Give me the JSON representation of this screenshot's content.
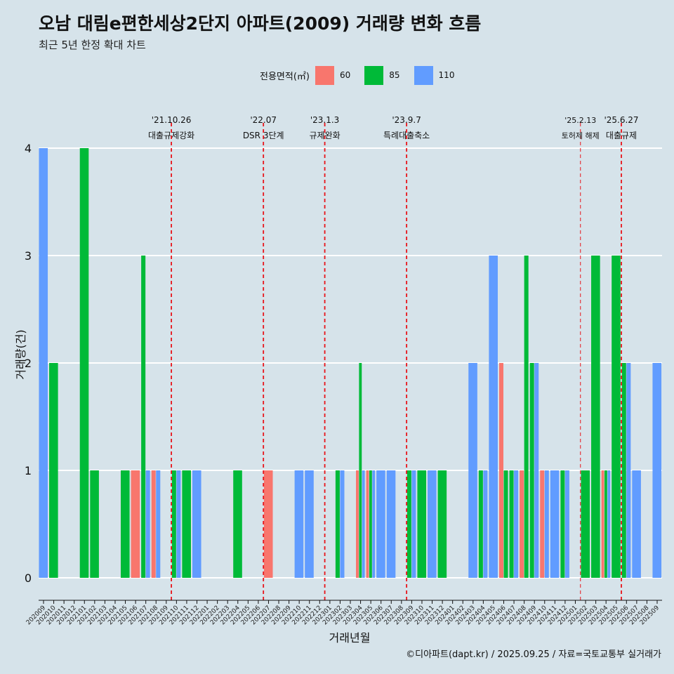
{
  "title": "오남 대림e편한세상2단지 아파트(2009) 거래량 변화 흐름",
  "subtitle": "최근 5년 한정 확대 차트",
  "caption": "©디아파트(dapt.kr) / 2025.09.25 / 자료=국토교통부 실거래가",
  "legend": {
    "title": "전용면적(㎡)",
    "items": [
      {
        "label": "60",
        "color": "#f8766d"
      },
      {
        "label": "85",
        "color": "#00ba38"
      },
      {
        "label": "110",
        "color": "#619cff"
      }
    ]
  },
  "chart_data": {
    "type": "bar",
    "title": "오남 대림e편한세상2단지 아파트(2009) 거래량 변화 흐름",
    "xlabel": "거래년월",
    "ylabel": "거래량(건)",
    "ylim": [
      0,
      4
    ],
    "yticks": [
      0,
      1,
      2,
      3,
      4
    ],
    "categories": [
      "202009",
      "202010",
      "202011",
      "202012",
      "202101",
      "202102",
      "202103",
      "202104",
      "202105",
      "202106",
      "202107",
      "202108",
      "202109",
      "202110",
      "202111",
      "202112",
      "202201",
      "202202",
      "202203",
      "202204",
      "202205",
      "202206",
      "202207",
      "202208",
      "202209",
      "202210",
      "202211",
      "202212",
      "202301",
      "202302",
      "202303",
      "202304",
      "202305",
      "202306",
      "202307",
      "202308",
      "202309",
      "202310",
      "202311",
      "202312",
      "202401",
      "202402",
      "202403",
      "202404",
      "202405",
      "202406",
      "202407",
      "202408",
      "202409",
      "202410",
      "202411",
      "202412",
      "202501",
      "202502",
      "202503",
      "202504",
      "202505",
      "202506",
      "202507",
      "202508",
      "202509"
    ],
    "series": [
      {
        "name": "60",
        "color": "#f8766d",
        "values": [
          0,
          0,
          0,
          0,
          0,
          0,
          0,
          0,
          0,
          1,
          0,
          1,
          0,
          0,
          0,
          0,
          0,
          0,
          0,
          0,
          0,
          0,
          1,
          0,
          0,
          0,
          0,
          0,
          0,
          0,
          0,
          1,
          1,
          0,
          0,
          0,
          0,
          0,
          0,
          0,
          0,
          0,
          0,
          0,
          0,
          2,
          0,
          1,
          0,
          1,
          0,
          0,
          0,
          0,
          0,
          1,
          0,
          0,
          0,
          0,
          0
        ]
      },
      {
        "name": "85",
        "color": "#00ba38",
        "values": [
          0,
          2,
          0,
          0,
          4,
          1,
          0,
          0,
          1,
          0,
          3,
          0,
          0,
          1,
          1,
          0,
          0,
          0,
          0,
          1,
          0,
          0,
          0,
          0,
          0,
          0,
          0,
          0,
          0,
          1,
          0,
          2,
          1,
          0,
          0,
          0,
          1,
          1,
          0,
          1,
          0,
          0,
          0,
          1,
          0,
          1,
          1,
          3,
          2,
          0,
          0,
          1,
          0,
          1,
          3,
          1,
          3,
          2,
          0,
          0,
          0
        ]
      },
      {
        "name": "110",
        "color": "#619cff",
        "values": [
          4,
          0,
          0,
          0,
          0,
          0,
          0,
          0,
          0,
          0,
          1,
          1,
          0,
          1,
          0,
          1,
          0,
          0,
          0,
          0,
          0,
          0,
          0,
          0,
          0,
          1,
          1,
          0,
          0,
          1,
          0,
          1,
          1,
          1,
          1,
          0,
          1,
          0,
          1,
          0,
          0,
          0,
          2,
          1,
          3,
          0,
          1,
          0,
          2,
          1,
          1,
          1,
          0,
          0,
          0,
          1,
          0,
          2,
          1,
          0,
          2
        ]
      }
    ],
    "events": [
      {
        "date": "'21.10.26",
        "label": "대출규제강화",
        "month_index": 13
      },
      {
        "date": "'22.07",
        "label": "DSR 3단계",
        "month_index": 22
      },
      {
        "date": "'23.1.3",
        "label": "규제완화",
        "month_index": 28
      },
      {
        "date": "'23.9.7",
        "label": "특례대출축소",
        "month_index": 36
      },
      {
        "date": "'25.2.13",
        "label": "토허제 해제",
        "month_index": 53
      },
      {
        "date": "'25.6.27",
        "label": "대출규제",
        "month_index": 57
      }
    ]
  }
}
